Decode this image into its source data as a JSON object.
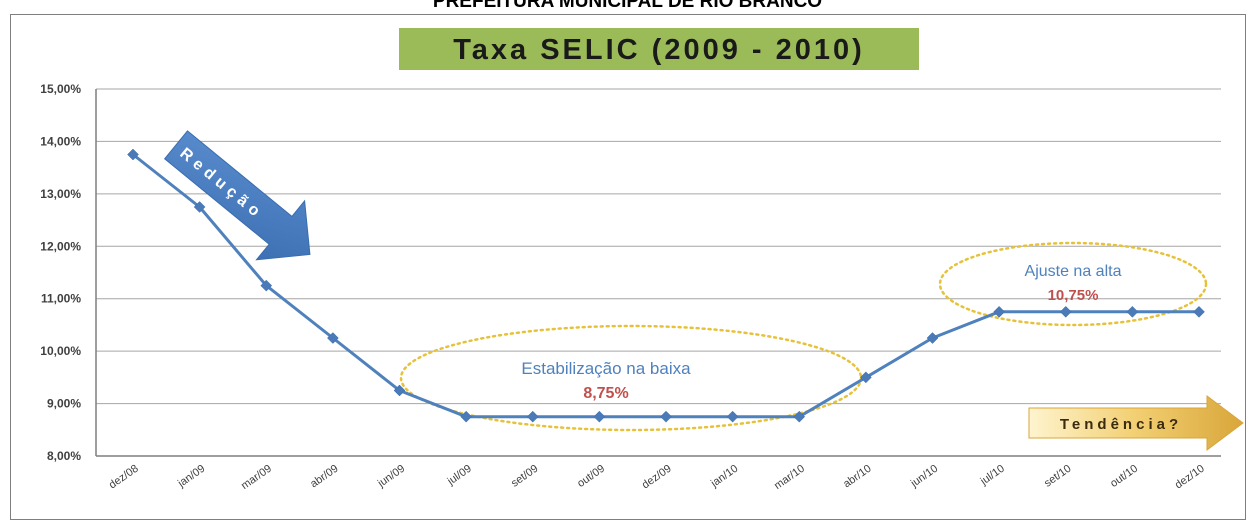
{
  "header": {
    "text": "PREFEITURA MUNICIPAL DE RIO BRANCO"
  },
  "chart_data": {
    "type": "line",
    "title": "Taxa SELIC (2009 - 2010)",
    "xlabel": "",
    "ylabel": "",
    "categories": [
      "dez/08",
      "jan/09",
      "mar/09",
      "abr/09",
      "jun/09",
      "jul/09",
      "set/09",
      "out/09",
      "dez/09",
      "jan/10",
      "mar/10",
      "abr/10",
      "jun/10",
      "jul/10",
      "set/10",
      "out/10",
      "dez/10"
    ],
    "series": [
      {
        "values": [
          13.75,
          12.75,
          11.25,
          10.25,
          9.25,
          8.75,
          8.75,
          8.75,
          8.75,
          8.75,
          8.75,
          9.5,
          10.25,
          10.75,
          10.75,
          10.75,
          10.75
        ]
      }
    ],
    "ylim": [
      8,
      15
    ],
    "yticks": [
      8,
      9,
      10,
      11,
      12,
      13,
      14,
      15
    ],
    "ytick_labels": [
      "8,00%",
      "9,00%",
      "10,00%",
      "11,00%",
      "12,00%",
      "13,00%",
      "14,00%",
      "15,00%"
    ],
    "grid": true,
    "legend": "none",
    "colors": {
      "line": "#4f81bd",
      "title_bg": "#9bbb59",
      "arrow": "#4f81bd",
      "ellipse": "#e6c23a",
      "value_text": "#c0504d",
      "annot_text": "#4f81bd",
      "tendencia_arrow": "#e4b84a"
    },
    "annotations": {
      "reducao": "Redução",
      "estabilizacao": "Estabilização na baixa",
      "estabilizacao_valor": "8,75%",
      "ajuste": "Ajuste na alta",
      "ajuste_valor": "10,75%",
      "tendencia": "Tendência?"
    }
  }
}
